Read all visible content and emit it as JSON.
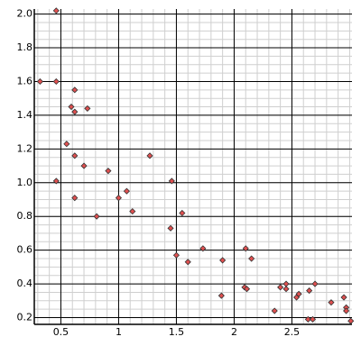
{
  "chart_data": {
    "type": "scatter",
    "x": [
      0.32,
      0.46,
      0.46,
      0.46,
      0.55,
      0.59,
      0.62,
      0.62,
      0.62,
      0.62,
      0.7,
      0.73,
      0.81,
      0.91,
      1.0,
      1.07,
      1.12,
      1.27,
      1.45,
      1.46,
      1.5,
      1.55,
      1.6,
      1.73,
      1.9,
      1.89,
      2.09,
      2.11,
      2.1,
      2.15,
      2.35,
      2.4,
      2.45,
      2.45,
      2.54,
      2.56,
      2.65,
      2.7,
      2.64,
      2.68,
      2.84,
      2.95,
      2.97,
      2.97,
      3.01
    ],
    "values": [
      1.6,
      2.02,
      1.6,
      1.01,
      1.23,
      1.45,
      1.55,
      1.42,
      1.16,
      0.91,
      1.1,
      1.44,
      0.8,
      1.07,
      0.91,
      0.95,
      0.83,
      1.16,
      0.73,
      1.01,
      0.57,
      0.82,
      0.53,
      0.61,
      0.54,
      0.33,
      0.38,
      0.37,
      0.61,
      0.55,
      0.24,
      0.38,
      0.37,
      0.4,
      0.32,
      0.34,
      0.36,
      0.4,
      0.19,
      0.19,
      0.29,
      0.32,
      0.26,
      0.24,
      0.18
    ],
    "color": "#e05050",
    "xlim": [
      0.27,
      3.02
    ],
    "ylim": [
      0.16,
      2.03
    ],
    "xticks": [
      0.5,
      1,
      1.5,
      2,
      2.5
    ],
    "yticks": [
      0.2,
      0.4,
      0.6,
      0.8,
      {
        "value": 1,
        "label": "1.0"
      },
      1.2,
      1.4,
      1.6,
      1.8,
      {
        "value": 2,
        "label": "2.0"
      }
    ],
    "grid": true
  }
}
